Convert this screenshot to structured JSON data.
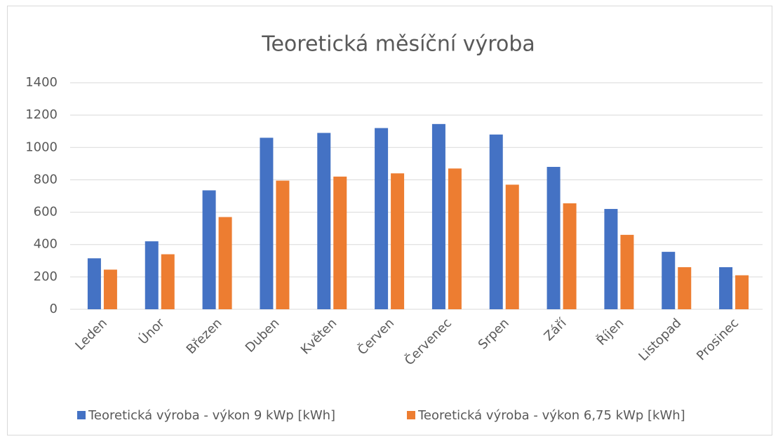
{
  "chart_data": {
    "type": "bar",
    "title": "Teoretická měsíční výroba",
    "categories": [
      "Leden",
      "Únor",
      "Březen",
      "Duben",
      "Květen",
      "Červen",
      "Červenec",
      "Srpen",
      "Září",
      "Říjen",
      "Listopad",
      "Prosinec"
    ],
    "series": [
      {
        "name": "Teoretická výroba - výkon 9 kWp [kWh]",
        "color": "#4472c4",
        "values": [
          315,
          420,
          735,
          1060,
          1090,
          1120,
          1145,
          1080,
          880,
          620,
          355,
          260
        ]
      },
      {
        "name": "Teoretická výroba - výkon 6,75 kWp [kWh]",
        "color": "#ed7d31",
        "values": [
          245,
          340,
          570,
          795,
          820,
          840,
          870,
          770,
          655,
          460,
          260,
          210
        ]
      }
    ],
    "ylim": [
      0,
      1400
    ],
    "yticks": [
      0,
      200,
      400,
      600,
      800,
      1000,
      1200,
      1400
    ],
    "grid": true,
    "legend": "bottom"
  }
}
